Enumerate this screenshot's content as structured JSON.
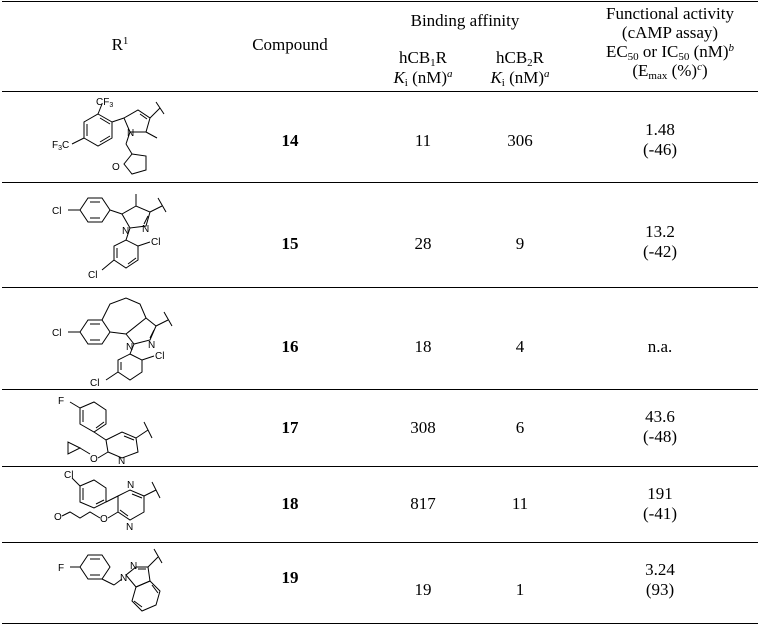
{
  "header": {
    "r1": "R",
    "r1_sup": "1",
    "compound": "Compound",
    "binding_affinity": "Binding affinity",
    "cb1": {
      "pre": "hCB",
      "sub": "1",
      "post": "R",
      "k": "K",
      "ksub": "i",
      "unit": " (nM)",
      "sup": "a"
    },
    "cb2": {
      "pre": "hCB",
      "sub": "2",
      "post": "R",
      "k": "K",
      "ksub": "i",
      "unit": " (nM)",
      "sup": "a"
    },
    "functional": {
      "line1": "Functional activity",
      "line2": "(cAMP assay)",
      "ec": "EC",
      "ec_sub": "50",
      "or": " or IC",
      "ic_sub": "50",
      "unit": " (nM)",
      "unit_sup": "b",
      "emax_open": "(E",
      "emax_sub": "max",
      "emax_close": " (%)",
      "emax_sup": "c",
      "emax_end": ")"
    }
  },
  "rows": [
    {
      "compound": "14",
      "cb1": "11",
      "cb2": "306",
      "func1": "1.48",
      "func2": "(-46)"
    },
    {
      "compound": "15",
      "cb1": "28",
      "cb2": "9",
      "func1": "13.2",
      "func2": "(-42)"
    },
    {
      "compound": "16",
      "cb1": "18",
      "cb2": "4",
      "func1": "n.a.",
      "func2": ""
    },
    {
      "compound": "17",
      "cb1": "308",
      "cb2": "6",
      "func1": "43.6",
      "func2": "(-48)"
    },
    {
      "compound": "18",
      "cb1": "817",
      "cb2": "11",
      "func1": "191",
      "func2": "(-41)"
    },
    {
      "compound": "19",
      "cb1": "19",
      "cb2": "1",
      "func1": "3.24",
      "func2": "(93)"
    }
  ],
  "atoms": {
    "cf3": "CF",
    "three": "3",
    "f3c": "F",
    "f3c_rest": "C",
    "n": "N",
    "o": "O",
    "cl": "Cl",
    "f": "F"
  }
}
